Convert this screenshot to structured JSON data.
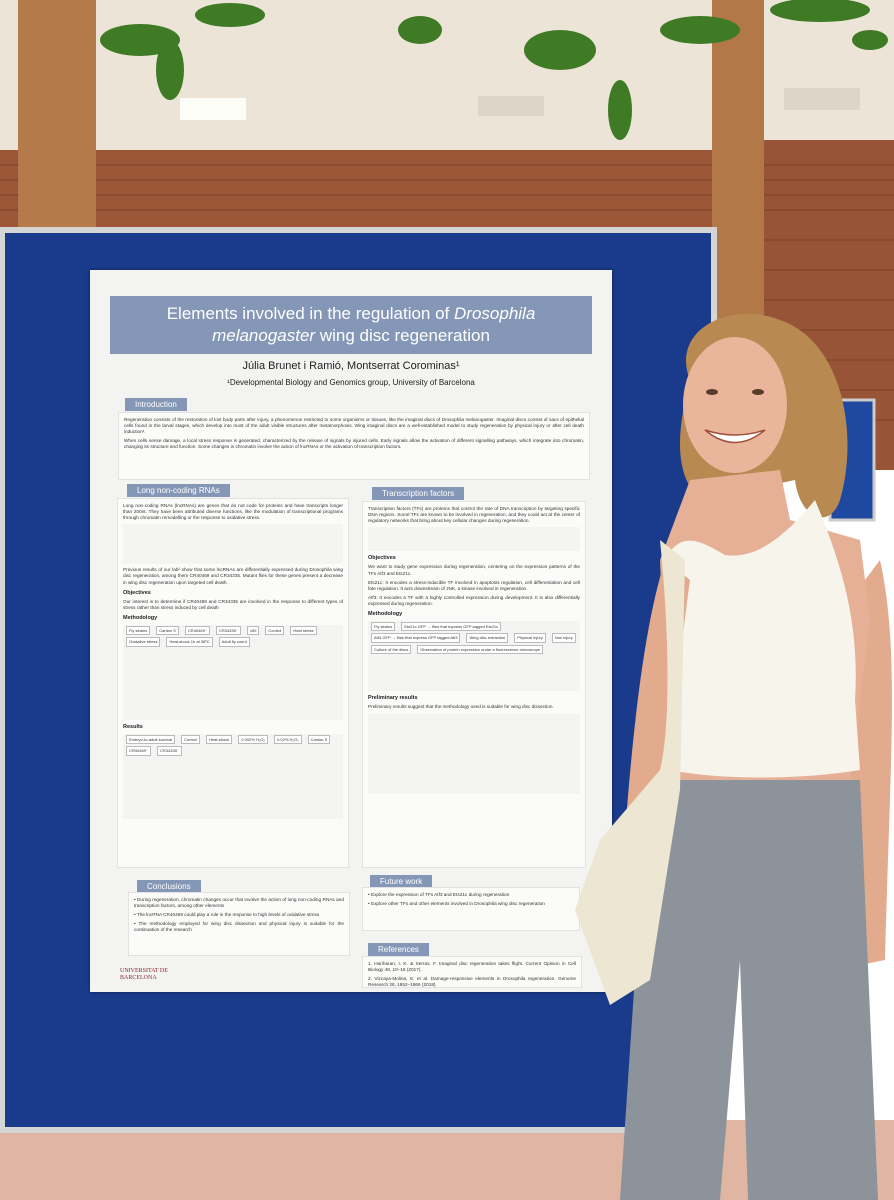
{
  "poster": {
    "title_parts": [
      "Elements involved in the regulation of ",
      "Drosophila melanogaster",
      " wing disc regeneration"
    ],
    "authors": "Júlia Brunet i Ramió, Montserrat Corominas¹",
    "affiliation": "¹Developmental Biology and Genomics group, University of Barcelona",
    "sections": [
      {
        "heading": "Introduction",
        "paragraphs": [
          "Regeneration consists of the restoration of lost body parts after injury, a phenomenon restricted to some organisms or tissues, like the imaginal discs of Drosophila melanogaster. Imaginal discs consist of sacs of epithelial cells found in the larval stages, which develop into most of the adult visible structures after metamorphosis. Wing imaginal discs are a well-established model to study regeneration by physical injury or after cell death induction¹.",
          "When cells sense damage, a local stress response is generated, characterized by the release of signals by injured cells. Early signals allow the activation of different signalling pathways, which integrate into chromatin, changing its structure and function. Some changes in chromatin involve the action of lncRNAs or the activation of transcription factors."
        ]
      },
      {
        "heading": "Long non-coding RNAs",
        "paragraphs": [
          "Long non-coding RNAs (lncRNAs) are genes that do not code for proteins and have transcripts longer than 200nt. They have been attributed diverse functions, like the modulation of transcriptional programs through chromatin remodelling or the response to oxidative stress.",
          "Previous results of our lab² show that some lncRNAs are differentially expressed during Drosophila wing disc regeneration, among them CR40469 and CR34335. Mutant flies for these genes present a decrease in wing disc regeneration upon targeted cell death."
        ],
        "subsections": [
          {
            "heading": "Objectives",
            "paragraphs": [
              "Our interest is to determine if CR40469 and CR34335 are involved in the response to different types of stress rather than stress induced by cell death"
            ]
          },
          {
            "heading": "Methodology",
            "labels": [
              "Fly strains",
              "Canton S",
              "CR40469⁻",
              "CR34335⁻",
              "x50",
              "Control",
              "Heat stress",
              "Oxidative stress",
              "Heat-shock 1h at 38ºC",
              "Adult fly count"
            ]
          },
          {
            "heading": "Results",
            "labels": [
              "Embryo-to-adult survival",
              "Control",
              "Heat-shock",
              "0.002% H₂O₂",
              "0.02% H₂O₂",
              "Canton S",
              "CR40469⁻",
              "CR34335⁻"
            ]
          }
        ]
      },
      {
        "heading": "Transcription factors",
        "paragraphs": [
          "Transcription factors (TFs) are proteins that control the rate of DNA transcription by targeting specific DNA regions. Some TFs are known to be involved in regeneration, and they could act at the center of regulatory networks that bring about key cellular changes during regeneration."
        ],
        "subsections": [
          {
            "heading": "Objectives",
            "paragraphs": [
              "We want to study gene expression during regeneration, centering on the expression patterns of the TFs Atf3 and Ets21c.",
              "Ets21c: It encodes a stress-inducible TF involved in apoptosis regulation, cell differentiation and cell fate regulation. It acts downstream of JNK, a kinase involved in regeneration.",
              "Atf3: It encodes a TF with a highly controlled expression during development. It is also differentially expressed during regeneration."
            ]
          },
          {
            "heading": "Methodology",
            "labels": [
              "Fly strains",
              "Ets21c-GFP → flies that express GFP tagged Ets21c",
              "Atf3-GFP → flies that express GFP tagged Atf3",
              "Wing disc extraction",
              "Physical injury",
              "Non injury",
              "Culture of the discs",
              "Observation of protein expression under a fluorescence microscope"
            ]
          },
          {
            "heading": "Preliminary results",
            "paragraphs": [
              "Preliminary results suggest that the methodology used is suitable for wing disc dissection."
            ]
          }
        ]
      },
      {
        "heading": "Conclusions",
        "paragraphs": [
          "• During regeneration, chromatin changes occur that involve the action of long non-coding RNAs and transcription factors, among other elements",
          "• The lncRNA CR40469 could play a role in the response to high levels of oxidative stress",
          "• The methodology employed for wing disc dissection and physical injury is suitable for the continuation of the research"
        ]
      },
      {
        "heading": "Future work",
        "paragraphs": [
          "• Explore the expression of TFs Atf3 and Ets21c during regeneration",
          "• Explore other TFs and other elements involved in Drosophila wing disc regeneration"
        ]
      },
      {
        "heading": "References",
        "paragraphs": [
          "1. Hariharan, I. K. & Serras, F. Imaginal disc regeneration takes flight. Current Opinion in Cell Biology 48, 10–16 (2017).",
          "2. Vizcaya-Molina, E. et al. Damage-responsive elements in Drosophila regeneration. Genome Research 28, 1852–1866 (2018)."
        ]
      }
    ],
    "logo": "UNIVERSITAT DE BARCELONA"
  }
}
